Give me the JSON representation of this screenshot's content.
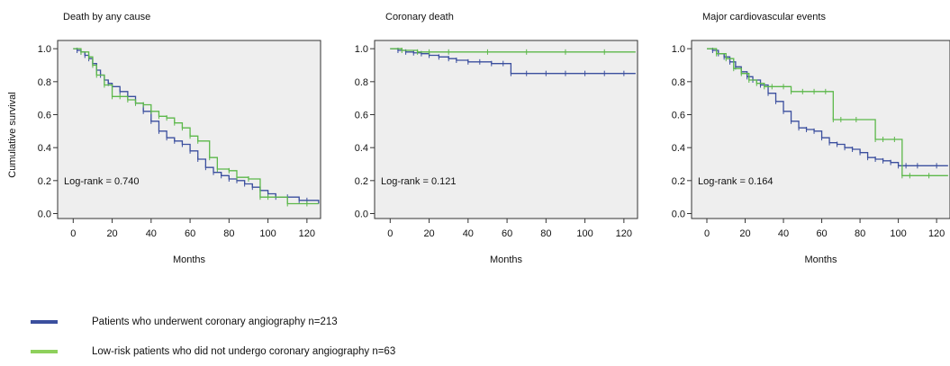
{
  "figure": {
    "y_axis_label": "Cumulative survival",
    "colors": {
      "underwent": "#3b4f9e",
      "low_risk": "#5cb84a",
      "panel_bg": "#eeeeee",
      "axis": "#333333"
    }
  },
  "legend": [
    {
      "label": "Patients who underwent coronary angiography n=213",
      "color": "#3b4f9e"
    },
    {
      "label": "Low-risk patients who did not undergo coronary angiography n=63",
      "color": "#8ed05c"
    }
  ],
  "chart_data": [
    {
      "type": "line",
      "step": true,
      "title": "Death by any cause",
      "xlabel": "Months",
      "ylabel": "Cumulative survival",
      "xlim": [
        -8,
        127
      ],
      "ylim": [
        -0.03,
        1.05
      ],
      "xticks": [
        0,
        20,
        40,
        60,
        80,
        100,
        120
      ],
      "yticks": [
        0.0,
        0.2,
        0.4,
        0.6,
        0.8,
        1.0
      ],
      "annotation": "Log-rank = 0.740",
      "grid": false,
      "series": [
        {
          "name": "Patients who underwent coronary angiography n=213",
          "color": "#3b4f9e",
          "x": [
            0,
            2,
            4,
            6,
            8,
            10,
            12,
            14,
            16,
            18,
            20,
            24,
            28,
            32,
            36,
            40,
            44,
            48,
            52,
            56,
            60,
            64,
            68,
            72,
            76,
            80,
            84,
            88,
            92,
            96,
            100,
            104,
            110,
            116,
            120,
            126
          ],
          "y": [
            1.0,
            0.99,
            0.98,
            0.96,
            0.94,
            0.91,
            0.87,
            0.84,
            0.81,
            0.79,
            0.77,
            0.74,
            0.71,
            0.67,
            0.62,
            0.56,
            0.5,
            0.46,
            0.44,
            0.42,
            0.38,
            0.33,
            0.28,
            0.25,
            0.23,
            0.21,
            0.2,
            0.18,
            0.16,
            0.14,
            0.12,
            0.1,
            0.1,
            0.08,
            0.08,
            0.06
          ]
        },
        {
          "name": "Low-risk patients who did not undergo coronary angiography n=63",
          "color": "#5cb84a",
          "x": [
            0,
            4,
            8,
            10,
            12,
            16,
            20,
            24,
            28,
            32,
            36,
            40,
            44,
            48,
            52,
            56,
            60,
            64,
            70,
            74,
            80,
            84,
            90,
            96,
            100,
            110,
            120,
            126
          ],
          "y": [
            1.0,
            0.98,
            0.95,
            0.9,
            0.84,
            0.78,
            0.71,
            0.71,
            0.69,
            0.67,
            0.66,
            0.62,
            0.59,
            0.58,
            0.55,
            0.52,
            0.47,
            0.44,
            0.34,
            0.27,
            0.26,
            0.22,
            0.21,
            0.1,
            0.1,
            0.06,
            0.06,
            0.06
          ]
        }
      ]
    },
    {
      "type": "line",
      "step": true,
      "title": "Coronary death",
      "xlabel": "Months",
      "ylabel": "",
      "xlim": [
        -8,
        127
      ],
      "ylim": [
        -0.03,
        1.05
      ],
      "xticks": [
        0,
        20,
        40,
        60,
        80,
        100,
        120
      ],
      "yticks": [
        0.0,
        0.2,
        0.4,
        0.6,
        0.8,
        1.0
      ],
      "annotation": "Log-rank = 0.121",
      "grid": false,
      "series": [
        {
          "name": "Patients who underwent coronary angiography n=213",
          "color": "#3b4f9e",
          "x": [
            0,
            4,
            8,
            12,
            16,
            20,
            25,
            30,
            34,
            40,
            46,
            52,
            58,
            62,
            70,
            80,
            90,
            100,
            110,
            120,
            126
          ],
          "y": [
            1.0,
            0.99,
            0.98,
            0.975,
            0.97,
            0.96,
            0.95,
            0.94,
            0.93,
            0.92,
            0.92,
            0.91,
            0.91,
            0.85,
            0.85,
            0.85,
            0.85,
            0.85,
            0.85,
            0.85,
            0.85
          ]
        },
        {
          "name": "Low-risk patients who did not undergo coronary angiography n=63",
          "color": "#5cb84a",
          "x": [
            0,
            6,
            14,
            20,
            30,
            50,
            70,
            90,
            110,
            126
          ],
          "y": [
            1.0,
            0.99,
            0.98,
            0.98,
            0.98,
            0.98,
            0.98,
            0.98,
            0.98,
            0.98
          ]
        }
      ]
    },
    {
      "type": "line",
      "step": true,
      "title": "Major cardiovascular events",
      "xlabel": "Months",
      "ylabel": "",
      "xlim": [
        -8,
        127
      ],
      "ylim": [
        -0.03,
        1.05
      ],
      "xticks": [
        0,
        20,
        40,
        60,
        80,
        100,
        120
      ],
      "yticks": [
        0.0,
        0.2,
        0.4,
        0.6,
        0.8,
        1.0
      ],
      "annotation": "Log-rank = 0.164",
      "grid": false,
      "series": [
        {
          "name": "Patients who underwent coronary angiography n=213",
          "color": "#3b4f9e",
          "x": [
            0,
            3,
            6,
            9,
            12,
            15,
            18,
            21,
            24,
            28,
            32,
            36,
            40,
            44,
            48,
            52,
            56,
            60,
            64,
            68,
            72,
            76,
            80,
            84,
            88,
            92,
            96,
            100,
            104,
            110,
            120,
            126
          ],
          "y": [
            1.0,
            0.99,
            0.97,
            0.95,
            0.92,
            0.89,
            0.86,
            0.83,
            0.81,
            0.78,
            0.73,
            0.68,
            0.62,
            0.56,
            0.52,
            0.51,
            0.5,
            0.46,
            0.43,
            0.42,
            0.4,
            0.39,
            0.37,
            0.34,
            0.33,
            0.32,
            0.31,
            0.29,
            0.29,
            0.29,
            0.29,
            0.29
          ]
        },
        {
          "name": "Low-risk patients who did not undergo coronary angiography n=63",
          "color": "#5cb84a",
          "x": [
            0,
            5,
            10,
            14,
            18,
            22,
            26,
            30,
            34,
            40,
            44,
            50,
            56,
            62,
            66,
            70,
            78,
            88,
            92,
            98,
            102,
            106,
            116,
            126
          ],
          "y": [
            1.0,
            0.97,
            0.94,
            0.88,
            0.85,
            0.81,
            0.79,
            0.77,
            0.77,
            0.77,
            0.74,
            0.74,
            0.74,
            0.74,
            0.57,
            0.57,
            0.57,
            0.45,
            0.45,
            0.45,
            0.23,
            0.23,
            0.23,
            0.23
          ]
        }
      ]
    }
  ]
}
